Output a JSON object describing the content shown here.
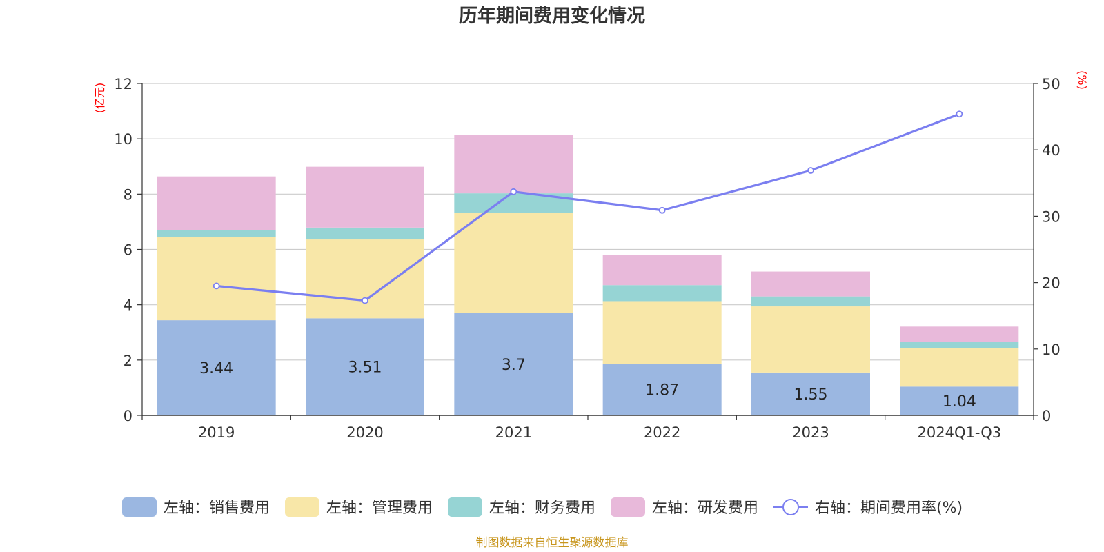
{
  "colors": {
    "sales": "#9bb7e1",
    "admin": "#f8e7a8",
    "finance": "#96d4d4",
    "rnd": "#e8b9da",
    "rate": "#7b7ff0",
    "axis_unit": "#ff0000",
    "source": "#c8961e",
    "grid": "#cccccc"
  },
  "chart_data": {
    "type": "bar",
    "title": "历年期间费用变化情况",
    "categories": [
      "2019",
      "2020",
      "2021",
      "2022",
      "2023",
      "2024Q1-Q3"
    ],
    "left_axis": {
      "unit": "(亿元)",
      "ylim": [
        0,
        12
      ],
      "ticks": [
        "0",
        "2",
        "4",
        "6",
        "8",
        "10",
        "12"
      ]
    },
    "right_axis": {
      "unit": "(%)",
      "ylim": [
        0,
        50
      ],
      "ticks": [
        "0",
        "10",
        "20",
        "30",
        "40",
        "50"
      ]
    },
    "stacked": true,
    "series": [
      {
        "name": "左轴：销售费用",
        "key": "sales",
        "axis": "left",
        "values": [
          3.44,
          3.51,
          3.7,
          1.87,
          1.55,
          1.04
        ],
        "labels": [
          "3.44",
          "3.51",
          "3.7",
          "1.87",
          "1.55",
          "1.04"
        ]
      },
      {
        "name": "左轴：管理费用",
        "key": "admin",
        "axis": "left",
        "values": [
          3.0,
          2.85,
          3.63,
          2.26,
          2.39,
          1.39
        ]
      },
      {
        "name": "左轴：财务费用",
        "key": "finance",
        "axis": "left",
        "values": [
          0.26,
          0.43,
          0.7,
          0.58,
          0.36,
          0.23
        ]
      },
      {
        "name": "左轴：研发费用",
        "key": "rnd",
        "axis": "left",
        "values": [
          1.94,
          2.2,
          2.11,
          1.08,
          0.9,
          0.55
        ]
      }
    ],
    "line_series": {
      "name": "右轴：期间费用率(%)",
      "key": "rate",
      "axis": "right",
      "values": [
        19.5,
        17.3,
        33.7,
        30.9,
        36.9,
        45.4
      ]
    },
    "grid": true,
    "legend_position": "bottom"
  },
  "source_note": "制图数据来自恒生聚源数据库"
}
